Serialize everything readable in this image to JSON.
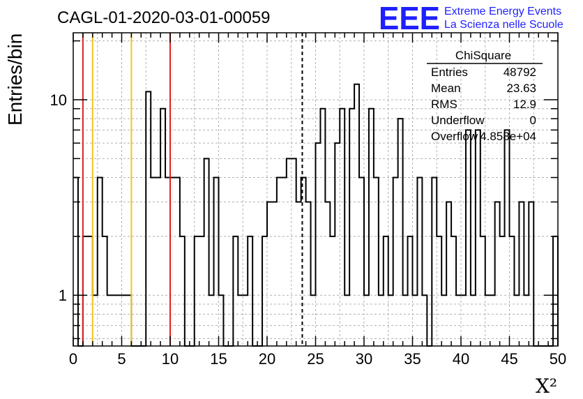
{
  "title": "CAGL-01-2020-03-01-00059",
  "logo": {
    "letters": "EEE",
    "line1": "Extreme Energy Events",
    "line2": "La Scienza nelle Scuole",
    "color": "#1f1fff"
  },
  "stats": {
    "name": "ChiSquare",
    "rows": [
      {
        "label": "Entries",
        "value": "48792"
      },
      {
        "label": "Mean",
        "value": "23.63"
      },
      {
        "label": "RMS",
        "value": "12.9"
      },
      {
        "label": "Underflow",
        "value": "0"
      },
      {
        "label": "Overflow",
        "value": "4.858e+04"
      }
    ]
  },
  "chart_data": {
    "type": "histogram",
    "title": "CAGL-01-2020-03-01-00059",
    "xlabel": "X²",
    "ylabel": "Entries/bin",
    "xlim": [
      0,
      50
    ],
    "ylim": [
      0.55,
      22
    ],
    "yscale": "log",
    "grid": true,
    "bin_width": 0.5,
    "x_ticks": [
      "0",
      "5",
      "10",
      "15",
      "20",
      "25",
      "30",
      "35",
      "40",
      "45",
      "50"
    ],
    "y_ticks": [
      {
        "value": 1,
        "label": "1"
      },
      {
        "value": 10,
        "label": "10"
      }
    ],
    "bins": [
      {
        "x": 0.0,
        "y": 4
      },
      {
        "x": 1.0,
        "y": 2
      },
      {
        "x": 1.5,
        "y": 2
      },
      {
        "x": 2.0,
        "y": 1
      },
      {
        "x": 2.5,
        "y": 4
      },
      {
        "x": 3.0,
        "y": 2
      },
      {
        "x": 3.5,
        "y": 1
      },
      {
        "x": 4.0,
        "y": 1
      },
      {
        "x": 4.5,
        "y": 1
      },
      {
        "x": 5.0,
        "y": 1
      },
      {
        "x": 5.5,
        "y": 1
      },
      {
        "x": 7.5,
        "y": 11
      },
      {
        "x": 8.0,
        "y": 4
      },
      {
        "x": 8.5,
        "y": 4
      },
      {
        "x": 9.0,
        "y": 9
      },
      {
        "x": 9.5,
        "y": 4
      },
      {
        "x": 10.0,
        "y": 4
      },
      {
        "x": 10.5,
        "y": 4
      },
      {
        "x": 11.0,
        "y": 2
      },
      {
        "x": 12.5,
        "y": 2
      },
      {
        "x": 13.0,
        "y": 2
      },
      {
        "x": 13.5,
        "y": 5
      },
      {
        "x": 14.0,
        "y": 1
      },
      {
        "x": 14.5,
        "y": 4
      },
      {
        "x": 15.0,
        "y": 1
      },
      {
        "x": 16.5,
        "y": 2
      },
      {
        "x": 17.0,
        "y": 1
      },
      {
        "x": 17.5,
        "y": 1
      },
      {
        "x": 18.0,
        "y": 2
      },
      {
        "x": 19.5,
        "y": 2
      },
      {
        "x": 20.0,
        "y": 3
      },
      {
        "x": 20.5,
        "y": 3
      },
      {
        "x": 21.0,
        "y": 4
      },
      {
        "x": 21.5,
        "y": 4
      },
      {
        "x": 22.0,
        "y": 5
      },
      {
        "x": 22.5,
        "y": 5
      },
      {
        "x": 23.0,
        "y": 3
      },
      {
        "x": 23.5,
        "y": 4
      },
      {
        "x": 24.0,
        "y": 3
      },
      {
        "x": 24.5,
        "y": 1
      },
      {
        "x": 25.0,
        "y": 6
      },
      {
        "x": 25.5,
        "y": 9
      },
      {
        "x": 26.0,
        "y": 3
      },
      {
        "x": 26.5,
        "y": 2
      },
      {
        "x": 27.0,
        "y": 6
      },
      {
        "x": 27.5,
        "y": 9
      },
      {
        "x": 28.0,
        "y": 1
      },
      {
        "x": 28.5,
        "y": 9
      },
      {
        "x": 29.0,
        "y": 12
      },
      {
        "x": 29.5,
        "y": 4
      },
      {
        "x": 30.0,
        "y": 1
      },
      {
        "x": 30.5,
        "y": 9
      },
      {
        "x": 31.0,
        "y": 4
      },
      {
        "x": 31.5,
        "y": 1
      },
      {
        "x": 32.0,
        "y": 2
      },
      {
        "x": 32.5,
        "y": 1
      },
      {
        "x": 33.0,
        "y": 4
      },
      {
        "x": 33.5,
        "y": 8
      },
      {
        "x": 34.0,
        "y": 1
      },
      {
        "x": 34.5,
        "y": 2
      },
      {
        "x": 35.0,
        "y": 1
      },
      {
        "x": 35.5,
        "y": 4
      },
      {
        "x": 36.0,
        "y": 1
      },
      {
        "x": 37.0,
        "y": 4
      },
      {
        "x": 37.5,
        "y": 2
      },
      {
        "x": 38.0,
        "y": 1
      },
      {
        "x": 38.5,
        "y": 3
      },
      {
        "x": 39.0,
        "y": 2
      },
      {
        "x": 39.5,
        "y": 1
      },
      {
        "x": 40.0,
        "y": 1
      },
      {
        "x": 40.5,
        "y": 7
      },
      {
        "x": 41.0,
        "y": 1
      },
      {
        "x": 41.5,
        "y": 7
      },
      {
        "x": 42.0,
        "y": 2
      },
      {
        "x": 42.5,
        "y": 1
      },
      {
        "x": 43.0,
        "y": 1
      },
      {
        "x": 43.5,
        "y": 3
      },
      {
        "x": 44.0,
        "y": 2
      },
      {
        "x": 44.5,
        "y": 7
      },
      {
        "x": 45.0,
        "y": 2
      },
      {
        "x": 45.5,
        "y": 1
      },
      {
        "x": 46.0,
        "y": 3
      },
      {
        "x": 46.5,
        "y": 1
      },
      {
        "x": 47.0,
        "y": 3
      },
      {
        "x": 49.5,
        "y": 2
      }
    ],
    "vertical_lines": [
      {
        "x": 1.0,
        "color": "#e02020",
        "style": "solid"
      },
      {
        "x": 10.0,
        "color": "#e02020",
        "style": "solid"
      },
      {
        "x": 2.0,
        "color": "#f5c518",
        "style": "solid"
      },
      {
        "x": 6.0,
        "color": "#f5c518",
        "style": "solid"
      },
      {
        "x": 23.63,
        "color": "#000000",
        "style": "dashed"
      }
    ]
  }
}
